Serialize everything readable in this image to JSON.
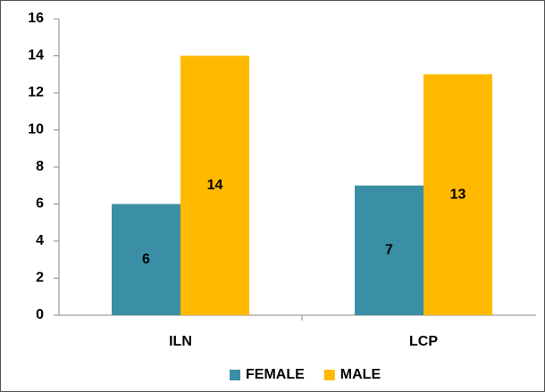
{
  "chart_data": {
    "type": "bar",
    "categories": [
      "ILN",
      "LCP"
    ],
    "series": [
      {
        "name": "FEMALE",
        "color": "#3a8fa6",
        "values": [
          6,
          7
        ]
      },
      {
        "name": "MALE",
        "color": "#ffb900",
        "values": [
          14,
          13
        ]
      }
    ],
    "ylim": [
      0,
      16
    ],
    "yticks": [
      0,
      2,
      4,
      6,
      8,
      10,
      12,
      14,
      16
    ],
    "grid": false,
    "legend": "bottom"
  }
}
